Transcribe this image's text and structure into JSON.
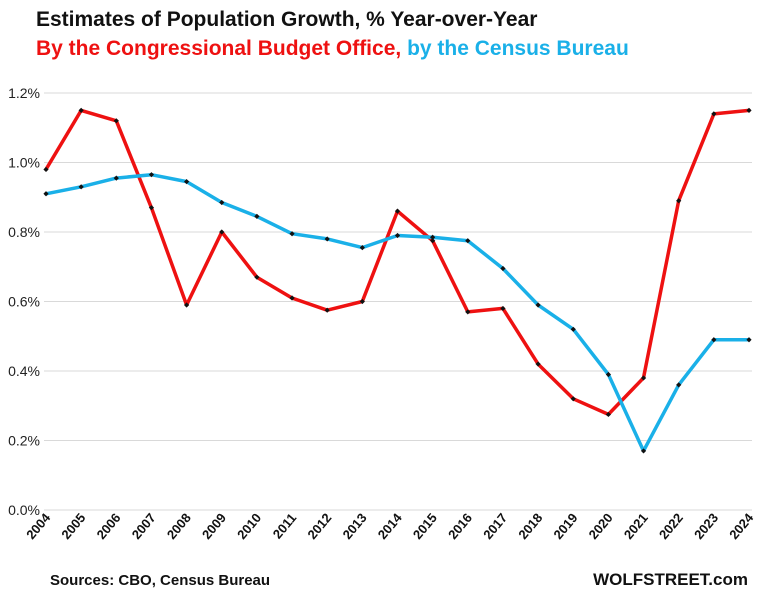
{
  "chart_data": {
    "type": "line",
    "title": "Estimates of Population Growth, % Year-over-Year",
    "subtitle_cbo": "By the Congressional Budget Office,",
    "subtitle_census": "by the Census Bureau",
    "x": [
      "2004",
      "2005",
      "2006",
      "2007",
      "2008",
      "2009",
      "2010",
      "2011",
      "2012",
      "2013",
      "2014",
      "2015",
      "2016",
      "2017",
      "2018",
      "2019",
      "2020",
      "2021",
      "2022",
      "2023",
      "2024"
    ],
    "series": [
      {
        "name": "Congressional Budget Office",
        "color": "#ee1111",
        "values": [
          0.98,
          1.15,
          1.12,
          0.87,
          0.59,
          0.8,
          0.67,
          0.61,
          0.575,
          0.6,
          0.86,
          0.775,
          0.57,
          0.58,
          0.42,
          0.32,
          0.275,
          0.38,
          0.89,
          1.14,
          1.15
        ]
      },
      {
        "name": "Census Bureau",
        "color": "#1ab0e8",
        "values": [
          0.91,
          0.93,
          0.955,
          0.965,
          0.945,
          0.885,
          0.845,
          0.795,
          0.78,
          0.755,
          0.79,
          0.785,
          0.775,
          0.695,
          0.59,
          0.52,
          0.39,
          0.17,
          0.36,
          0.49,
          0.49
        ]
      }
    ],
    "yticks": [
      "0.0%",
      "0.2%",
      "0.4%",
      "0.6%",
      "0.8%",
      "1.0%",
      "1.2%"
    ],
    "ytick_values": [
      0,
      0.2,
      0.4,
      0.6,
      0.8,
      1.0,
      1.2
    ],
    "ylim": [
      0,
      1.2
    ],
    "grid": true,
    "marker_color": "#111111"
  },
  "source": "Sources: CBO, Census Bureau",
  "brand": "WOLFSTREET.com"
}
